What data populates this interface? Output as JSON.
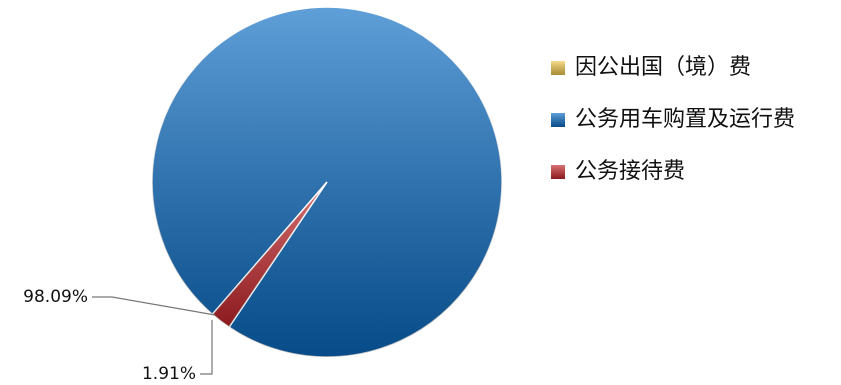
{
  "chart_data": {
    "type": "pie",
    "categories": [
      "因公出国（境）费",
      "公务用车购置及运行费",
      "公务接待费"
    ],
    "values": [
      0,
      98.09,
      1.91
    ],
    "value_labels": [
      null,
      "98.09%",
      "1.91%"
    ],
    "colors": [
      "#f2c94c",
      "#0a6cc4",
      "#c8262b"
    ],
    "legend": "right"
  }
}
